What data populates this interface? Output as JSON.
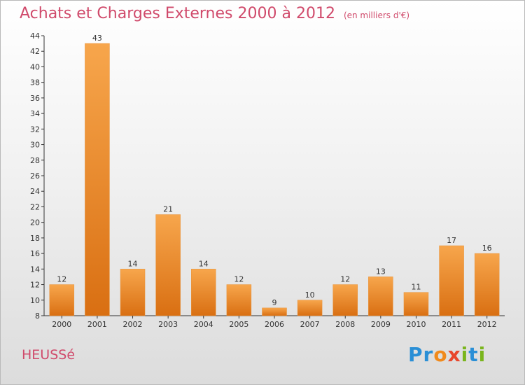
{
  "header": {
    "title": "Achats et Charges Externes 2000 à 2012",
    "subtitle": "(en milliers d'€)"
  },
  "place": "HEUSSé",
  "logo": {
    "letters": [
      "P",
      "r",
      "o",
      "x",
      "i",
      "t",
      "i"
    ],
    "colors": [
      "#2a8fd6",
      "#2a8fd6",
      "#f08a1c",
      "#e8462c",
      "#7ab51d",
      "#2a8fd6",
      "#7ab51d"
    ]
  },
  "colors": {
    "bar_top": "#f7a64c",
    "bar_bottom": "#d96f12",
    "axis": "#333333",
    "title": "#d04a6b"
  },
  "chart_data": {
    "type": "bar",
    "categories": [
      "2000",
      "2001",
      "2002",
      "2003",
      "2004",
      "2005",
      "2006",
      "2007",
      "2008",
      "2009",
      "2010",
      "2011",
      "2012"
    ],
    "values": [
      12,
      43,
      14,
      21,
      14,
      12,
      9,
      10,
      12,
      13,
      11,
      17,
      16
    ],
    "ylim": [
      8,
      44
    ],
    "yticks": [
      8,
      10,
      12,
      14,
      16,
      18,
      20,
      22,
      24,
      26,
      28,
      30,
      32,
      34,
      36,
      38,
      40,
      42,
      44
    ],
    "grid": false,
    "legend": "none"
  }
}
